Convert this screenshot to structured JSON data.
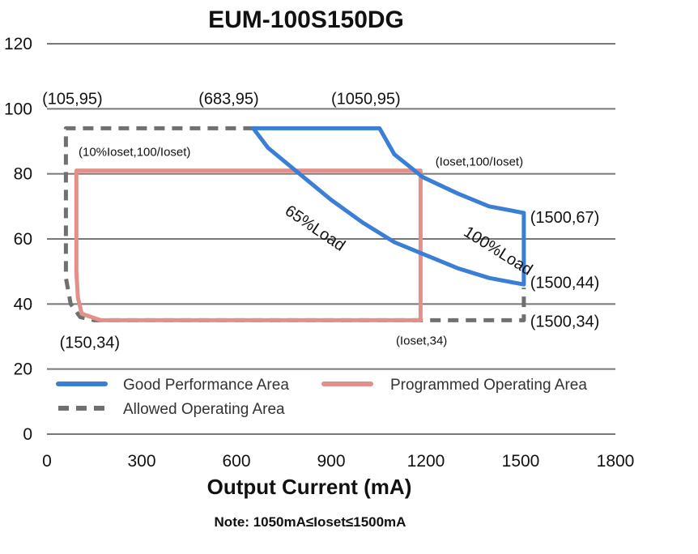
{
  "chart_data": {
    "type": "line",
    "title": "EUM-100S150DG",
    "xlabel": "Output Current (mA)",
    "ylabel": "",
    "xlim": [
      0,
      1800
    ],
    "ylim": [
      0,
      120
    ],
    "xticks": [
      "0",
      "300",
      "600",
      "900",
      "1200",
      "1500",
      "1800"
    ],
    "yticks": [
      "0",
      "20",
      "40",
      "60",
      "80",
      "100",
      "120"
    ],
    "grid": "horizontal",
    "legend_position": "bottom-inside",
    "note": "Note:  1050mA≤Ioset≤1500mA",
    "series": [
      {
        "name": "Good Performance Area",
        "color": "#3a7fd5",
        "style": "solid",
        "points": [
          [
            653,
            94
          ],
          [
            1053,
            94
          ],
          [
            1100,
            86
          ],
          [
            1190,
            79
          ],
          [
            1300,
            74
          ],
          [
            1400,
            70
          ],
          [
            1510,
            68
          ],
          [
            1510,
            46
          ],
          [
            1400,
            48
          ],
          [
            1300,
            51
          ],
          [
            1200,
            55
          ],
          [
            1100,
            59
          ],
          [
            1000,
            65
          ],
          [
            900,
            72
          ],
          [
            800,
            80
          ],
          [
            700,
            88
          ],
          [
            653,
            94
          ]
        ]
      },
      {
        "name": "Programmed Operating Area",
        "color": "#e3908a",
        "style": "solid",
        "points": [
          [
            93,
            81
          ],
          [
            1183,
            81
          ],
          [
            1183,
            35
          ],
          [
            170,
            35
          ],
          [
            110,
            37
          ],
          [
            98,
            42
          ],
          [
            93,
            50
          ],
          [
            93,
            81
          ]
        ]
      },
      {
        "name": "Allowed Operating Area",
        "color": "#707070",
        "style": "dashed",
        "points": [
          [
            655,
            94
          ],
          [
            60,
            94
          ],
          [
            60,
            48
          ],
          [
            75,
            40
          ],
          [
            105,
            36
          ],
          [
            150,
            35
          ],
          [
            1510,
            35
          ],
          [
            1510,
            45
          ]
        ]
      }
    ],
    "annotations": [
      {
        "text": "(105,95)",
        "x": -15,
        "y": 101.5,
        "size": "large"
      },
      {
        "text": "(683,95)",
        "x": 480,
        "y": 101.5,
        "size": "large"
      },
      {
        "text": "(1050,95)",
        "x": 900,
        "y": 101.5,
        "size": "large"
      },
      {
        "text": "(10%Ioset,100/Ioset)",
        "x": 100,
        "y": 85.5,
        "size": "small"
      },
      {
        "text": "(Ioset,100/Ioset)",
        "x": 1230,
        "y": 82.5,
        "size": "small"
      },
      {
        "text": "(1500,67)",
        "x": 1530,
        "y": 65,
        "size": "large"
      },
      {
        "text": "(1500,44)",
        "x": 1530,
        "y": 45,
        "size": "large"
      },
      {
        "text": "(1500,34)",
        "x": 1530,
        "y": 33,
        "size": "large"
      },
      {
        "text": "(150,34)",
        "x": 40,
        "y": 26.5,
        "size": "large"
      },
      {
        "text": "(Ioset,34)",
        "x": 1105,
        "y": 27.5,
        "size": "small"
      }
    ],
    "region_labels": [
      {
        "text": "65%Load",
        "x": 840,
        "y": 62,
        "angle": 34
      },
      {
        "text": "100%Load",
        "x": 1420,
        "y": 55,
        "angle": 32
      }
    ]
  }
}
